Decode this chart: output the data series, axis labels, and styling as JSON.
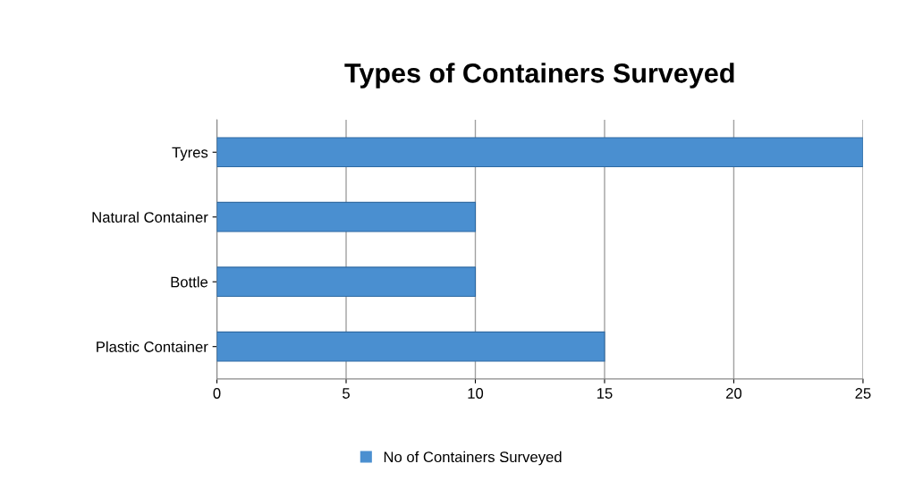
{
  "chart_data": {
    "type": "bar",
    "orientation": "horizontal",
    "title": "Types of Containers Surveyed",
    "categories": [
      "Tyres",
      "Natural Container",
      "Bottle",
      "Plastic Container"
    ],
    "series": [
      {
        "name": "No of Containers Surveyed",
        "color": "#4a8fd0",
        "values": [
          25,
          10,
          10,
          15
        ]
      }
    ],
    "xlim": [
      0,
      25
    ],
    "xticks": [
      0,
      5,
      10,
      15,
      20,
      25
    ],
    "grid": "x",
    "legend": "bottom"
  }
}
